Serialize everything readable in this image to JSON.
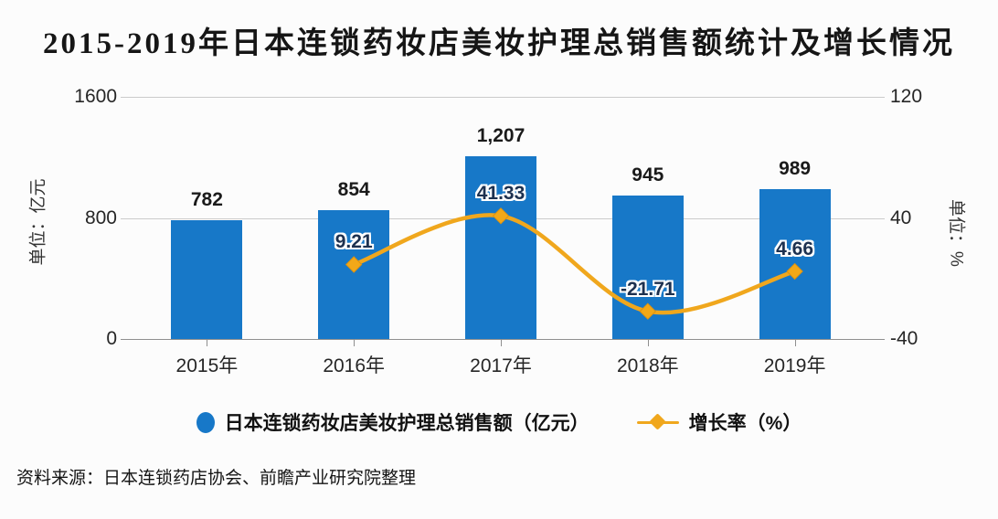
{
  "title": "2015-2019年日本连锁药妆店美妆护理总销售额统计及增长情况",
  "source": "资料来源：日本连锁药店协会、前瞻产业研究院整理",
  "legend": [
    {
      "label": "日本连锁药妆店美妆护理总销售额（亿元）",
      "marker": "circle",
      "color": "#1778c8"
    },
    {
      "label": "增长率（%）",
      "marker": "line-diamond",
      "color": "#f0a71d"
    }
  ],
  "colors": {
    "bar": "#1778c8",
    "line": "#f0a71d",
    "marker_fill": "#f2a818",
    "marker_edge": "#dd9210",
    "line_label": "#1d3150",
    "bar_label": "#1a1a1a",
    "grid": "#cbcbcb",
    "axis_line": "#8f8f8f",
    "background": "#fcfcfc"
  },
  "chart_data": {
    "type": "bar+line",
    "categories": [
      "2015年",
      "2016年",
      "2017年",
      "2018年",
      "2019年"
    ],
    "series": [
      {
        "name": "日本连锁药妆店美妆护理总销售额（亿元）",
        "type": "bar",
        "axis": "left",
        "values": [
          782,
          854,
          1207,
          945,
          989
        ],
        "labels": [
          "782",
          "854",
          "1,207",
          "945",
          "989"
        ]
      },
      {
        "name": "增长率（%）",
        "type": "line",
        "axis": "right",
        "x": [
          "2016年",
          "2017年",
          "2018年",
          "2019年"
        ],
        "values": [
          9.21,
          41.33,
          -21.71,
          4.66
        ],
        "labels": [
          "9.21",
          "41.33",
          "-21.71",
          "4.66"
        ]
      }
    ],
    "left_axis": {
      "title": "单位：亿元",
      "min": 0,
      "max": 1600,
      "ticks": [
        0,
        800,
        1600
      ],
      "tick_labels": [
        "0",
        "800",
        "1600"
      ]
    },
    "right_axis": {
      "title": "单位：%",
      "min": -40,
      "max": 120,
      "ticks": [
        -40,
        40,
        120
      ],
      "tick_labels": [
        "-40",
        "40",
        "120"
      ]
    },
    "grid": true,
    "legend_position": "bottom"
  }
}
